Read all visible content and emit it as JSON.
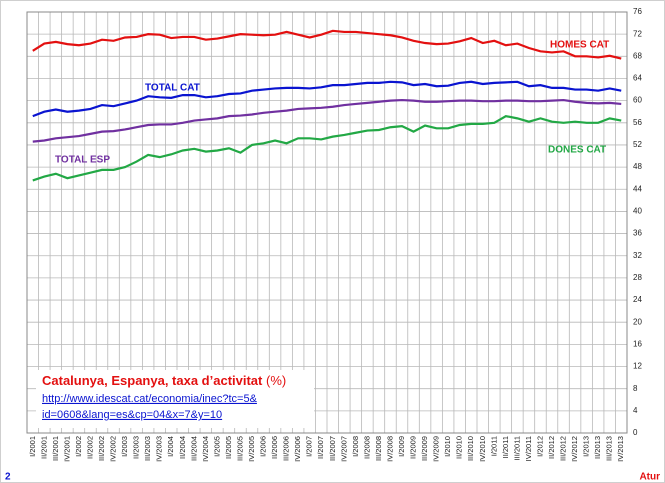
{
  "chart_data": {
    "type": "line",
    "title": "Catalunya, Espanya, taxa d’activitat",
    "title_unit": "(%)",
    "source_links": [
      "http://www.idescat.cat/economia/inec?tc=5&",
      "id=0608&lang=es&cp=04&x=7&y=10"
    ],
    "page_number": "2",
    "footer": "Atur",
    "categories": [
      "I/2001",
      "II/2001",
      "III/2001",
      "IV/2001",
      "I/2002",
      "II/2002",
      "III/2002",
      "IV/2002",
      "I/2003",
      "II/2003",
      "III/2003",
      "IV/2003",
      "I/2004",
      "II/2004",
      "III/2004",
      "IV/2004",
      "I/2005",
      "II/2005",
      "III/2005",
      "IV/2005",
      "I/2006",
      "II/2006",
      "III/2006",
      "IV/2006",
      "I/2007",
      "II/2007",
      "III/2007",
      "IV/2007",
      "I/2008",
      "II/2008",
      "III/2008",
      "IV/2008",
      "I/2009",
      "II/2009",
      "III/2009",
      "IV/2009",
      "I/2010",
      "II/2010",
      "III/2010",
      "IV/2010",
      "I/2011",
      "II/2011",
      "III/2011",
      "IV/2011",
      "I/2012",
      "II/2012",
      "III/2012",
      "IV/2012",
      "I/2013",
      "II/2013",
      "III/2013",
      "IV/2013"
    ],
    "series": [
      {
        "name": "HOMES CAT",
        "color": "#e31010",
        "values": [
          69,
          70.3,
          70.6,
          70.2,
          70,
          70.3,
          71,
          70.8,
          71.4,
          71.5,
          72,
          71.9,
          71.3,
          71.5,
          71.5,
          71,
          71.2,
          71.6,
          72,
          71.9,
          71.8,
          71.9,
          72.4,
          71.9,
          71.4,
          71.9,
          72.6,
          72.4,
          72.4,
          72.2,
          72,
          71.8,
          71.4,
          70.8,
          70.4,
          70.2,
          70.3,
          70.7,
          71.3,
          70.4,
          70.8,
          70,
          70.3,
          69.5,
          68.9,
          68.7,
          68.9,
          68,
          68,
          67.8,
          68.1,
          67.6
        ]
      },
      {
        "name": "TOTAL CAT",
        "color": "#0a14d0",
        "values": [
          57.2,
          58,
          58.4,
          58,
          58.2,
          58.5,
          59.2,
          59,
          59.5,
          60,
          60.8,
          60.6,
          60.5,
          61,
          61,
          60.6,
          60.8,
          61.2,
          61.3,
          61.8,
          62,
          62.2,
          62.3,
          62.3,
          62.2,
          62.4,
          62.8,
          62.8,
          63,
          63.2,
          63.2,
          63.4,
          63.3,
          62.8,
          63,
          62.6,
          62.7,
          63.2,
          63.4,
          63,
          63.2,
          63.3,
          63.4,
          62.6,
          62.8,
          62.3,
          62.3,
          62,
          62,
          61.8,
          62.2,
          61.8
        ]
      },
      {
        "name": "TOTAL ESP",
        "color": "#7030a0",
        "values": [
          52.6,
          52.8,
          53.2,
          53.4,
          53.6,
          54,
          54.4,
          54.5,
          54.8,
          55.2,
          55.6,
          55.7,
          55.7,
          56,
          56.4,
          56.6,
          56.8,
          57.2,
          57.3,
          57.5,
          57.8,
          58,
          58.2,
          58.5,
          58.6,
          58.7,
          58.9,
          59.2,
          59.4,
          59.6,
          59.8,
          60,
          60.1,
          60,
          59.8,
          59.8,
          59.9,
          60,
          60,
          59.9,
          59.9,
          60,
          60,
          59.9,
          59.9,
          60,
          60.1,
          59.8,
          59.6,
          59.5,
          59.6,
          59.4
        ]
      },
      {
        "name": "DONES CAT",
        "color": "#22a845",
        "values": [
          45.6,
          46.3,
          46.8,
          46,
          46.5,
          47,
          47.5,
          47.5,
          48,
          49,
          50.2,
          49.8,
          50.3,
          51,
          51.3,
          50.8,
          51,
          51.4,
          50.6,
          52,
          52.3,
          52.8,
          52.3,
          53.2,
          53.2,
          53,
          53.5,
          53.8,
          54.2,
          54.6,
          54.7,
          55.2,
          55.4,
          54.4,
          55.5,
          55,
          55,
          55.6,
          55.8,
          55.8,
          56,
          57.2,
          56.8,
          56.2,
          56.8,
          56.2,
          56,
          56.2,
          56,
          56,
          56.8,
          56.4
        ]
      }
    ],
    "ylim": [
      0,
      76
    ],
    "yticks": [
      0,
      4,
      8,
      12,
      16,
      20,
      24,
      28,
      32,
      36,
      40,
      44,
      48,
      52,
      56,
      60,
      64,
      68,
      72,
      76
    ],
    "grid": true
  }
}
